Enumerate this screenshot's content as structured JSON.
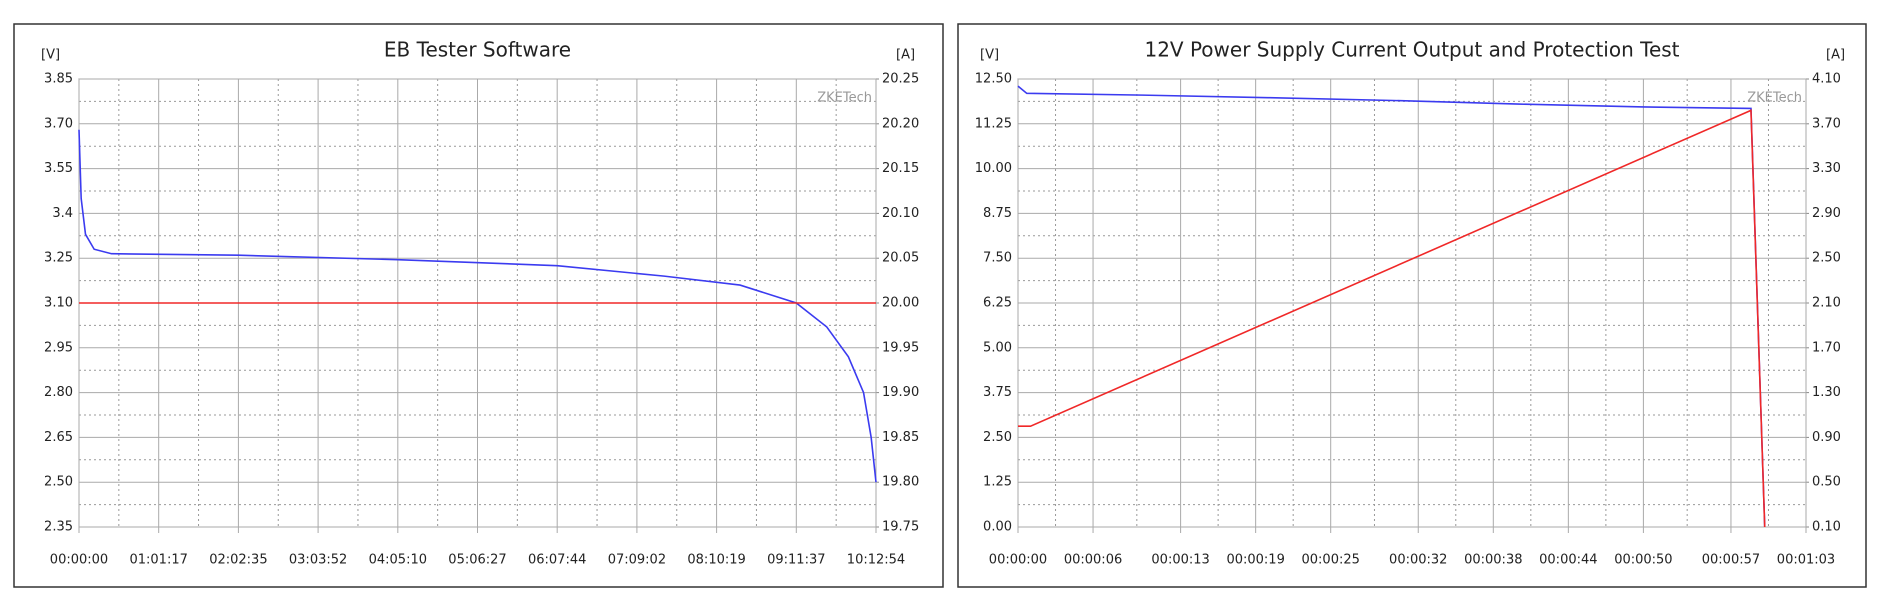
{
  "chart_data": [
    {
      "type": "line",
      "title": "EB Tester Software",
      "y_label": "[V]",
      "y2_label": "[A]",
      "annotation": "ZKETech",
      "xlim": [
        0,
        36774
      ],
      "xticks": [
        {
          "value": 0,
          "label": "00:00:00"
        },
        {
          "value": 3677,
          "label": "01:01:17"
        },
        {
          "value": 7355,
          "label": "02:02:35"
        },
        {
          "value": 11032,
          "label": "03:03:52"
        },
        {
          "value": 14710,
          "label": "04:05:10"
        },
        {
          "value": 18387,
          "label": "05:06:27"
        },
        {
          "value": 22064,
          "label": "06:07:44"
        },
        {
          "value": 25742,
          "label": "07:09:02"
        },
        {
          "value": 29419,
          "label": "08:10:19"
        },
        {
          "value": 33097,
          "label": "09:11:37"
        },
        {
          "value": 36774,
          "label": "10:12:54"
        }
      ],
      "ylim": [
        2.35,
        3.85
      ],
      "yticks": [
        2.35,
        {
          "value": 2.5,
          "label": "2.50"
        },
        2.65,
        {
          "value": 2.8,
          "label": "2.80"
        },
        2.95,
        {
          "value": 3.1,
          "label": "3.10"
        },
        3.25,
        3.4,
        3.55,
        {
          "value": 3.7,
          "label": "3.70"
        },
        3.85
      ],
      "y2lim": [
        19.75,
        20.25
      ],
      "y2ticks": [
        19.75,
        {
          "value": 19.8,
          "label": "19.80"
        },
        19.85,
        {
          "value": 19.9,
          "label": "19.90"
        },
        19.95,
        {
          "value": 20.0,
          "label": "20.00"
        },
        20.05,
        {
          "value": 20.1,
          "label": "20.10"
        },
        20.15,
        {
          "value": 20.2,
          "label": "20.20"
        },
        20.25
      ],
      "grid": true,
      "series": [
        {
          "color": "#3b3bf0",
          "axis": "y",
          "x": [
            0,
            100,
            300,
            700,
            1500,
            7355,
            14710,
            22064,
            27000,
            30500,
            33097,
            34500,
            35500,
            36200,
            36550,
            36774
          ],
          "values": [
            3.68,
            3.45,
            3.33,
            3.28,
            3.265,
            3.26,
            3.245,
            3.225,
            3.19,
            3.16,
            3.1,
            3.02,
            2.92,
            2.8,
            2.65,
            2.5
          ]
        },
        {
          "color": "#f02828",
          "axis": "y2",
          "x": [
            0,
            36774
          ],
          "values": [
            20.0,
            20.0
          ]
        }
      ]
    },
    {
      "type": "line",
      "title": "12V Power Supply Current Output and Protection Test",
      "y_label": "[V]",
      "y2_label": "[A]",
      "annotation": "ZKETech",
      "xlim": [
        0,
        63
      ],
      "xticks": [
        {
          "value": 0,
          "label": "00:00:00"
        },
        {
          "value": 6,
          "label": "00:00:06"
        },
        {
          "value": 13,
          "label": "00:00:13"
        },
        {
          "value": 19,
          "label": "00:00:19"
        },
        {
          "value": 25,
          "label": "00:00:25"
        },
        {
          "value": 32,
          "label": "00:00:32"
        },
        {
          "value": 38,
          "label": "00:00:38"
        },
        {
          "value": 44,
          "label": "00:00:44"
        },
        {
          "value": 50,
          "label": "00:00:50"
        },
        {
          "value": 57,
          "label": "00:00:57"
        },
        {
          "value": 63,
          "label": "00:01:03"
        }
      ],
      "ylim": [
        0,
        12.5
      ],
      "yticks": [
        {
          "value": 0,
          "label": "0.00"
        },
        1.25,
        {
          "value": 2.5,
          "label": "2.50"
        },
        3.75,
        {
          "value": 5,
          "label": "5.00"
        },
        6.25,
        {
          "value": 7.5,
          "label": "7.50"
        },
        8.75,
        {
          "value": 10,
          "label": "10.00"
        },
        11.25,
        {
          "value": 12.5,
          "label": "12.50"
        }
      ],
      "y2lim": [
        0.1,
        4.1
      ],
      "y2ticks": [
        {
          "value": 0.1,
          "label": "0.10"
        },
        {
          "value": 0.5,
          "label": "0.50"
        },
        {
          "value": 0.9,
          "label": "0.90"
        },
        {
          "value": 1.3,
          "label": "1.30"
        },
        {
          "value": 1.7,
          "label": "1.70"
        },
        {
          "value": 2.1,
          "label": "2.10"
        },
        {
          "value": 2.5,
          "label": "2.50"
        },
        {
          "value": 2.9,
          "label": "2.90"
        },
        {
          "value": 3.3,
          "label": "3.30"
        },
        {
          "value": 3.7,
          "label": "3.70"
        },
        {
          "value": 4.1,
          "label": "4.10"
        }
      ],
      "grid": true,
      "series": [
        {
          "color": "#3b3bf0",
          "axis": "y",
          "x": [
            0,
            0.7,
            10,
            20,
            30,
            40,
            50,
            58.6,
            59.7
          ],
          "values": [
            12.3,
            12.1,
            12.05,
            11.98,
            11.9,
            11.8,
            11.72,
            11.68,
            0
          ]
        },
        {
          "color": "#f02828",
          "axis": "y2",
          "x": [
            0,
            1,
            58.6,
            59.7
          ],
          "values": [
            1.0,
            1.0,
            3.82,
            0.1
          ]
        }
      ]
    }
  ]
}
